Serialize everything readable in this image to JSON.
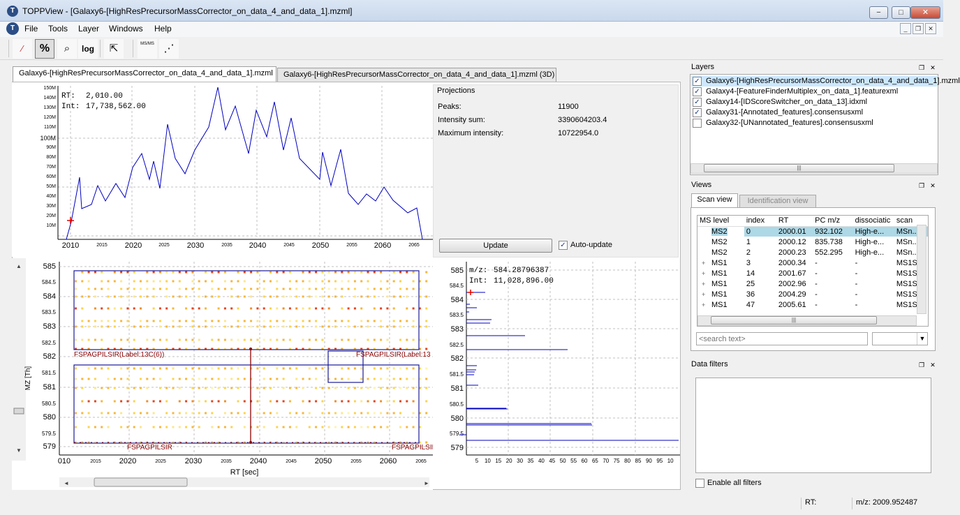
{
  "window": {
    "title": "TOPPView - [Galaxy6-[HighResPrecursorMassCorrector_on_data_4_and_data_1].mzml]",
    "controls": [
      "−",
      "□",
      "✕"
    ]
  },
  "menu": [
    "File",
    "Tools",
    "Layer",
    "Windows",
    "Help"
  ],
  "toolbar": {
    "buttons": [
      {
        "name": "linear-intensity",
        "label": "⁄"
      },
      {
        "name": "percentage-intensity",
        "label": "%",
        "active": true
      },
      {
        "name": "snap-intensity",
        "label": "⌕"
      },
      {
        "name": "log-intensity",
        "label": "log"
      },
      {
        "name": "reset-zoom",
        "label": "⇱"
      },
      {
        "name": "ms-ms-precursors",
        "label": "MS/MS"
      },
      {
        "name": "projections",
        "label": "⋰"
      }
    ]
  },
  "tabs": [
    {
      "label": "Galaxy6-[HighResPrecursorMassCorrector_on_data_4_and_data_1].mzml",
      "active": true
    },
    {
      "label": "Galaxy6-[HighResPrecursorMassCorrector_on_data_4_and_data_1].mzml (3D)",
      "active": false
    }
  ],
  "rt_projection": {
    "cursor_rt_label": "RT:",
    "cursor_rt_value": "2,010.00",
    "cursor_int_label": "Int:",
    "cursor_int_value": "17,738,562.00"
  },
  "projections": {
    "title": "Projections",
    "rows": [
      {
        "label": "Peaks:",
        "value": "11900"
      },
      {
        "label": "Intensity sum:",
        "value": "3390604203.4"
      },
      {
        "label": "Maximum intensity:",
        "value": "10722954.0"
      }
    ],
    "update_label": "Update",
    "auto_update_label": "Auto-update",
    "auto_update_checked": true
  },
  "main_view": {
    "y_axis_label": "MZ [Th]",
    "x_axis_label": "RT [sec]",
    "y_ticks": [
      "585",
      "584.5",
      "584",
      "583.5",
      "583",
      "582.5",
      "582",
      "581.5",
      "581",
      "580.5",
      "580",
      "579.5",
      "579"
    ],
    "x_ticks": [
      "010",
      "2015",
      "2020",
      "2025",
      "2030",
      "2035",
      "2040",
      "2045",
      "2050",
      "2055",
      "2060",
      "2065"
    ],
    "feature_labels": [
      "FSPAGPILSIR(Label:13C(6))",
      "FSPAGPILSIR(Label:13",
      "FSPAGPILSIR",
      "FSPAGPILSIR"
    ]
  },
  "mz_projection": {
    "cursor_mz_label": "m/z:",
    "cursor_mz_value": "584.28796387",
    "cursor_int_label": "Int:",
    "cursor_int_value": "11,028,896.00",
    "x_ticks": [
      "5",
      "10",
      "15",
      "20",
      "30",
      "35",
      "40",
      "45",
      "50",
      "55",
      "60",
      "65",
      "70",
      "75",
      "80",
      "85",
      "90",
      "95",
      "10"
    ]
  },
  "layers": {
    "title": "Layers",
    "items": [
      {
        "label": "Galaxy6-[HighResPrecursorMassCorrector_on_data_4_and_data_1].mzml",
        "checked": true,
        "selected": true
      },
      {
        "label": "Galaxy4-[FeatureFinderMultiplex_on_data_1].featurexml",
        "checked": true,
        "selected": false
      },
      {
        "label": "Galaxy14-[IDScoreSwitcher_on_data_13].idxml",
        "checked": true,
        "selected": false
      },
      {
        "label": "Galaxy31-[Annotated_features].consensusxml",
        "checked": true,
        "selected": false
      },
      {
        "label": "Galaxy32-[UNannotated_features].consensusxml",
        "checked": false,
        "selected": false
      }
    ]
  },
  "views": {
    "title": "Views",
    "tabs": [
      "Scan view",
      "Identification view"
    ],
    "columns": [
      "MS level",
      "index",
      "RT",
      "PC m/z",
      "dissociatic",
      "scan"
    ],
    "rows": [
      {
        "expander": "",
        "level": "MS2",
        "index": "0",
        "rt": "2000.01",
        "pcmz": "932.102",
        "diss": "High-e...",
        "scan": "MSn...",
        "selected": true
      },
      {
        "expander": "",
        "level": "MS2",
        "index": "1",
        "rt": "2000.12",
        "pcmz": "835.738",
        "diss": "High-e...",
        "scan": "MSn...",
        "selected": false
      },
      {
        "expander": "",
        "level": "MS2",
        "index": "2",
        "rt": "2000.23",
        "pcmz": "552.295",
        "diss": "High-e...",
        "scan": "MSn...",
        "selected": false
      },
      {
        "expander": "+",
        "level": "MS1",
        "index": "3",
        "rt": "2000.34",
        "pcmz": "-",
        "diss": "-",
        "scan": "MS1S...",
        "selected": false
      },
      {
        "expander": "+",
        "level": "MS1",
        "index": "14",
        "rt": "2001.67",
        "pcmz": "-",
        "diss": "-",
        "scan": "MS1S...",
        "selected": false
      },
      {
        "expander": "+",
        "level": "MS1",
        "index": "25",
        "rt": "2002.96",
        "pcmz": "-",
        "diss": "-",
        "scan": "MS1S...",
        "selected": false
      },
      {
        "expander": "+",
        "level": "MS1",
        "index": "36",
        "rt": "2004.29",
        "pcmz": "-",
        "diss": "-",
        "scan": "MS1S...",
        "selected": false
      },
      {
        "expander": "+",
        "level": "MS1",
        "index": "47",
        "rt": "2005.61",
        "pcmz": "-",
        "diss": "-",
        "scan": "MS1S...",
        "selected": false
      }
    ],
    "search_placeholder": "<search text>"
  },
  "data_filters": {
    "title": "Data filters",
    "enable_all_label": "Enable all filters"
  },
  "status": {
    "rt_label": "RT:",
    "mz_text": "m/z: 2009.952487"
  },
  "colors": {
    "accent_line": "#0000c0",
    "feature_box": "#1a1a9a",
    "annotation_red": "#8b0000",
    "selection_row": "#add8e6"
  }
}
